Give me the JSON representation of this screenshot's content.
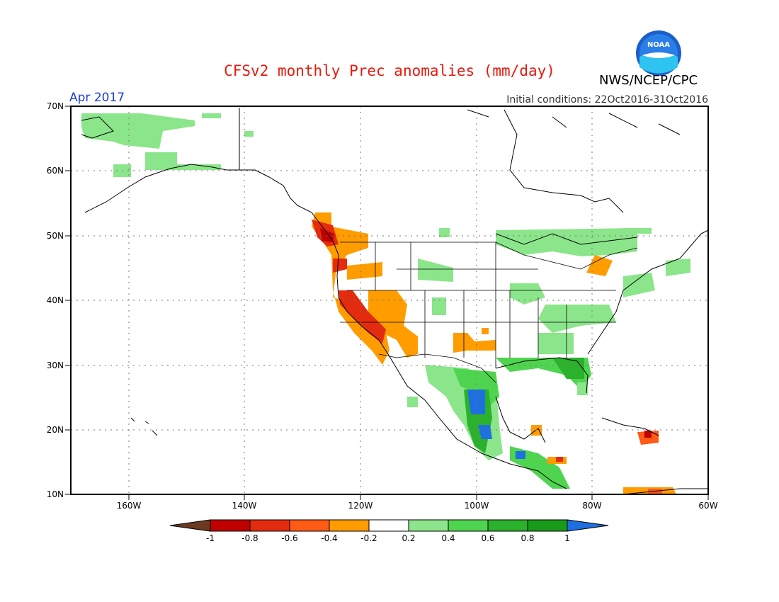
{
  "header": {
    "title": "CFSv2 monthly Prec anomalies (mm/day)",
    "period": "Apr 2017",
    "initial_conditions": "Initial conditions: 22Oct2016-31Oct2016",
    "agency": "NWS/NCEP/CPC",
    "logo_text": "NOAA"
  },
  "map": {
    "lon_range": [
      -170,
      -60
    ],
    "lat_range": [
      10,
      70
    ],
    "lat_ticks": [
      "10N",
      "20N",
      "30N",
      "40N",
      "50N",
      "60N",
      "70N"
    ],
    "lon_ticks": [
      "160W",
      "140W",
      "120W",
      "100W",
      "80W",
      "60W"
    ],
    "grid": true,
    "colors": {
      "title": "#e8190e",
      "period": "#1b3fd6",
      "coast": "#000000"
    }
  },
  "legend": {
    "labels": [
      "-1",
      "-0.8",
      "-0.6",
      "-0.4",
      "-0.2",
      "0.2",
      "0.4",
      "0.6",
      "0.8",
      "1"
    ],
    "colors": [
      "#6b3a1f",
      "#c00000",
      "#e32b10",
      "#ff5a16",
      "#ff9c00",
      "#ffffff",
      "#8be58a",
      "#4fd44f",
      "#2bb12b",
      "#1a9a1a",
      "#1e6fe0"
    ]
  }
}
